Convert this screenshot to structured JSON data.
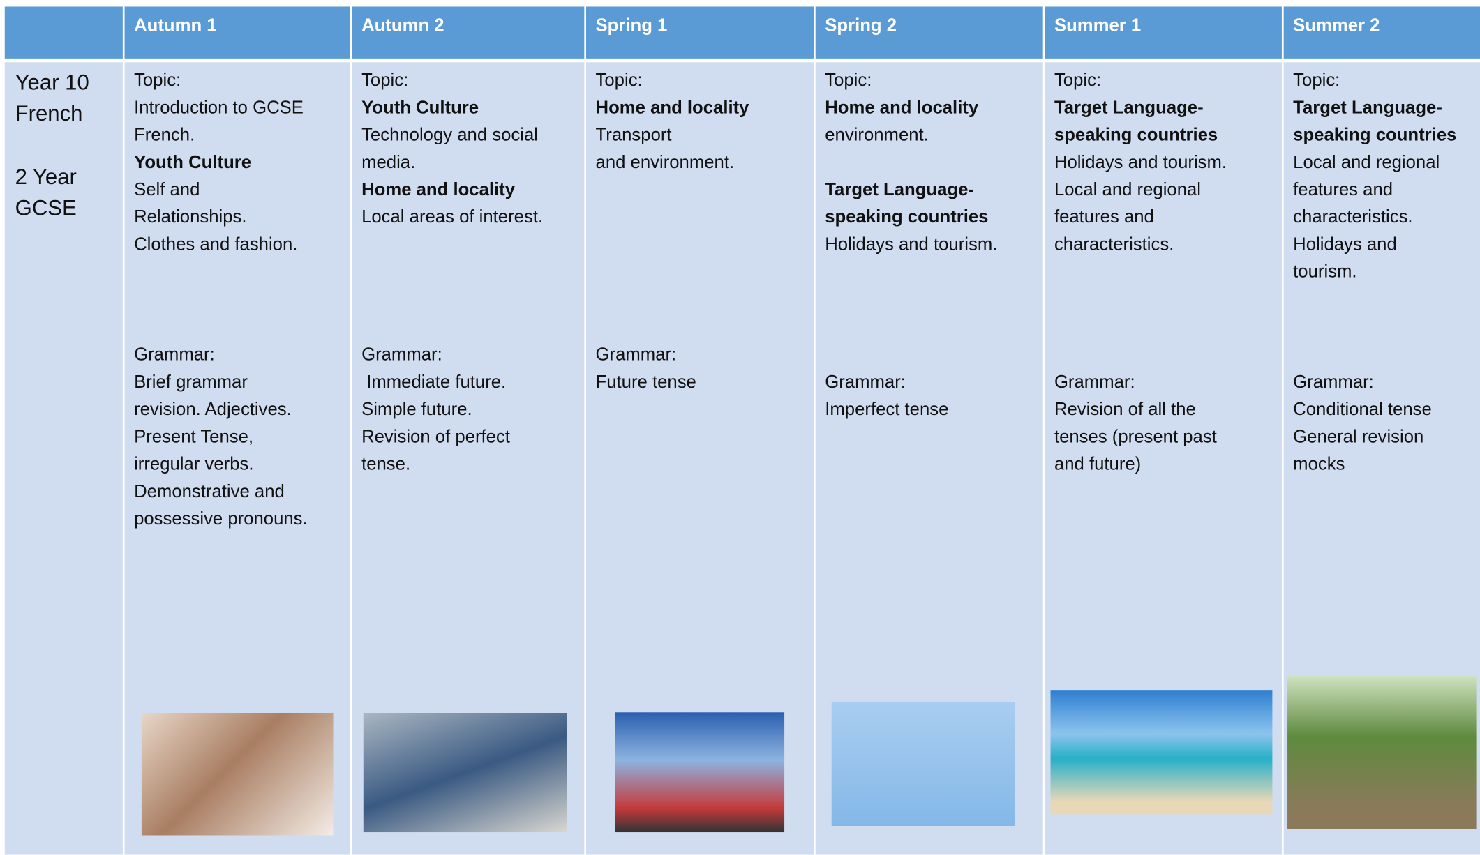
{
  "header": {
    "columns": [
      "Autumn 1",
      "Autumn 2",
      "Spring 1",
      "Spring 2",
      "Summer 1",
      "Summer 2"
    ]
  },
  "row": {
    "label": [
      "Year 10",
      "French"
    ],
    "sublabel": [
      "2 Year",
      "GCSE"
    ],
    "cells": [
      {
        "topic_label": "Topic:",
        "topic": [
          {
            "text": "Introduction to GCSE"
          },
          {
            "text": "French."
          },
          {
            "text": "Youth Culture",
            "bold": true
          },
          {
            "text": "Self and"
          },
          {
            "text": "Relationships."
          },
          {
            "text": "Clothes and fashion."
          }
        ],
        "grammar_label": "Grammar:",
        "grammar": [
          "Brief grammar",
          "revision. Adjectives.",
          "Present Tense,",
          "irregular verbs.",
          "Demonstrative and",
          "possessive pronouns."
        ]
      },
      {
        "topic_label": "Topic:",
        "topic": [
          {
            "text": "Youth Culture",
            "bold": true
          },
          {
            "text": "Technology and social"
          },
          {
            "text": "media."
          },
          {
            "text": "Home and locality",
            "bold": true
          },
          {
            "text": "Local areas of interest."
          }
        ],
        "grammar_label": "Grammar:",
        "grammar": [
          " Immediate future.",
          "Simple future.",
          "Revision of perfect",
          "tense."
        ]
      },
      {
        "topic_label": "Topic:",
        "topic": [
          {
            "text": "Home and locality",
            "bold": true
          },
          {
            "text": "Transport"
          },
          {
            "text": " and environment."
          }
        ],
        "grammar_label": "Grammar:",
        "grammar": [
          "Future tense"
        ]
      },
      {
        "topic_label": "Topic:",
        "topic": [
          {
            "text": "Home and locality",
            "bold": true
          },
          {
            "text": "environment."
          },
          {
            "text": "Target Language-",
            "bold": true
          },
          {
            "text": "speaking countries",
            "bold": true
          },
          {
            "text": "Holidays and tourism."
          }
        ],
        "grammar_label": "Grammar:",
        "grammar": [
          "Imperfect tense"
        ]
      },
      {
        "topic_label": "Topic:",
        "topic": [
          {
            "text": "Target Language-",
            "bold": true
          },
          {
            "text": "speaking countries",
            "bold": true
          },
          {
            "text": "Holidays and tourism."
          },
          {
            "text": "Local and regional"
          },
          {
            "text": "features and"
          },
          {
            "text": "characteristics."
          }
        ],
        "grammar_label": "Grammar:",
        "grammar": [
          "Revision of all the",
          "tenses (present past",
          "and future)"
        ]
      },
      {
        "topic_label": "Topic:",
        "topic": [
          {
            "text": "Target Language-",
            "bold": true
          },
          {
            "text": "speaking countries",
            "bold": true
          },
          {
            "text": "Local and regional"
          },
          {
            "text": "features and"
          },
          {
            "text": "characteristics."
          },
          {
            "text": "Holidays and"
          },
          {
            "text": "tourism."
          }
        ],
        "grammar_label": "Grammar:",
        "grammar": [
          "Conditional tense",
          "General revision",
          "mocks"
        ]
      }
    ]
  }
}
